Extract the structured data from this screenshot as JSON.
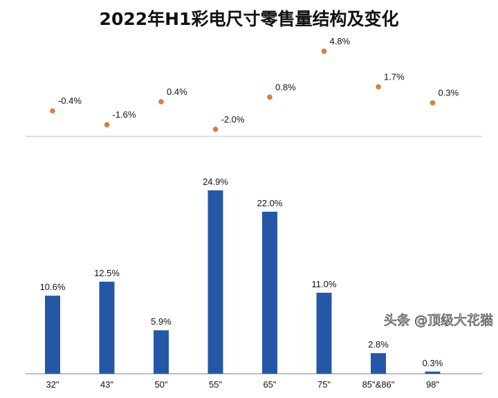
{
  "chart_data": [
    {
      "type": "scatter",
      "title": "2022年H1彩电尺寸零售量结构及变化",
      "categories": [
        "32\"",
        "43\"",
        "50\"",
        "55\"",
        "65\"",
        "75\"",
        "85\"&86\"",
        "98\""
      ],
      "values": [
        -0.4,
        -1.6,
        0.4,
        -2.0,
        0.8,
        4.8,
        1.7,
        0.3
      ],
      "labels": [
        "-0.4%",
        "-1.6%",
        "0.4%",
        "-2.0%",
        "0.8%",
        "4.8%",
        "1.7%",
        "0.3%"
      ],
      "color": "#E07B39"
    },
    {
      "type": "bar",
      "categories": [
        "32\"",
        "43\"",
        "50\"",
        "55\"",
        "65\"",
        "75\"",
        "85\"&86\"",
        "98\""
      ],
      "values": [
        10.6,
        12.5,
        5.9,
        24.9,
        22.0,
        11.0,
        2.8,
        0.3
      ],
      "labels": [
        "10.6%",
        "12.5%",
        "5.9%",
        "24.9%",
        "22.0%",
        "11.0%",
        "2.8%",
        "0.3%"
      ],
      "color": "#2458A6",
      "ylim": [
        0,
        25
      ]
    }
  ],
  "watermark": "头条 @顶级大花猫"
}
